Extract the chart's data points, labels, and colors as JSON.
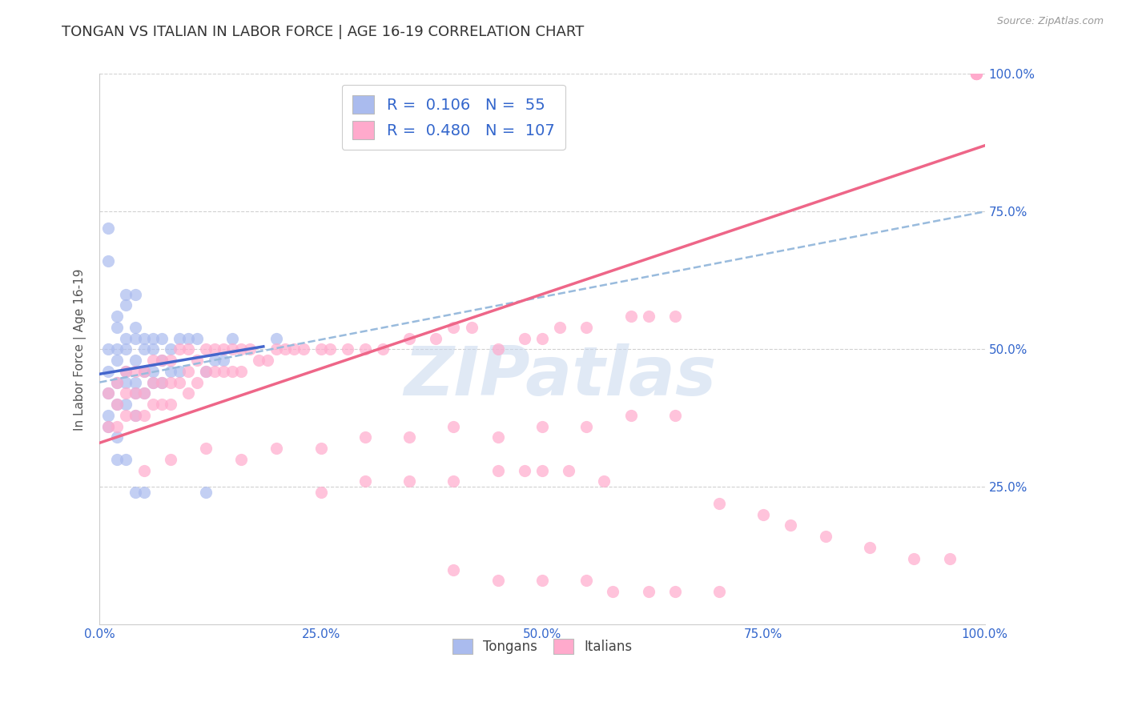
{
  "title": "TONGAN VS ITALIAN IN LABOR FORCE | AGE 16-19 CORRELATION CHART",
  "source": "Source: ZipAtlas.com",
  "ylabel": "In Labor Force | Age 16-19",
  "watermark": "ZIPatlas",
  "xlim": [
    0,
    1.0
  ],
  "ylim": [
    0,
    1.0
  ],
  "xticks": [
    0.0,
    0.25,
    0.5,
    0.75,
    1.0
  ],
  "yticks": [
    0.25,
    0.5,
    0.75,
    1.0
  ],
  "xticklabels": [
    "0.0%",
    "25.0%",
    "50.0%",
    "75.0%",
    "100.0%"
  ],
  "yticklabels_right": [
    "25.0%",
    "50.0%",
    "75.0%",
    "100.0%"
  ],
  "grid_color": "#cccccc",
  "background_color": "#ffffff",
  "tongan_color": "#aabbee",
  "italian_color": "#ffaacc",
  "tongan_line_color": "#4466cc",
  "italian_line_color": "#ee6688",
  "dashed_line_color": "#99bbdd",
  "tick_color": "#3366cc",
  "legend_R_tongan": "0.106",
  "legend_N_tongan": "55",
  "legend_R_italian": "0.480",
  "legend_N_italian": "107",
  "legend_text_color": "#3366cc",
  "title_fontsize": 13,
  "axis_label_fontsize": 11,
  "tick_fontsize": 11,
  "tongan_scatter_x": [
    0.01,
    0.01,
    0.01,
    0.02,
    0.02,
    0.02,
    0.02,
    0.02,
    0.03,
    0.03,
    0.03,
    0.03,
    0.03,
    0.04,
    0.04,
    0.04,
    0.04,
    0.04,
    0.04,
    0.05,
    0.05,
    0.05,
    0.05,
    0.06,
    0.06,
    0.06,
    0.06,
    0.07,
    0.07,
    0.07,
    0.08,
    0.08,
    0.09,
    0.09,
    0.1,
    0.11,
    0.12,
    0.13,
    0.14,
    0.15,
    0.02,
    0.03,
    0.04,
    0.05,
    0.01,
    0.01,
    0.01,
    0.02,
    0.03,
    0.04,
    0.12,
    0.2,
    0.01,
    0.02,
    0.03
  ],
  "tongan_scatter_y": [
    0.5,
    0.46,
    0.42,
    0.54,
    0.5,
    0.48,
    0.44,
    0.4,
    0.52,
    0.5,
    0.46,
    0.44,
    0.4,
    0.54,
    0.52,
    0.48,
    0.44,
    0.42,
    0.38,
    0.52,
    0.5,
    0.46,
    0.42,
    0.52,
    0.5,
    0.46,
    0.44,
    0.52,
    0.48,
    0.44,
    0.5,
    0.46,
    0.52,
    0.46,
    0.52,
    0.52,
    0.46,
    0.48,
    0.48,
    0.52,
    0.3,
    0.3,
    0.24,
    0.24,
    0.66,
    0.72,
    0.36,
    0.34,
    0.6,
    0.6,
    0.24,
    0.52,
    0.38,
    0.56,
    0.58
  ],
  "italian_scatter_x": [
    0.01,
    0.01,
    0.02,
    0.02,
    0.02,
    0.03,
    0.03,
    0.03,
    0.04,
    0.04,
    0.04,
    0.05,
    0.05,
    0.05,
    0.06,
    0.06,
    0.06,
    0.07,
    0.07,
    0.07,
    0.08,
    0.08,
    0.08,
    0.09,
    0.09,
    0.1,
    0.1,
    0.1,
    0.11,
    0.11,
    0.12,
    0.12,
    0.13,
    0.13,
    0.14,
    0.14,
    0.15,
    0.15,
    0.16,
    0.16,
    0.17,
    0.18,
    0.19,
    0.2,
    0.21,
    0.22,
    0.23,
    0.25,
    0.26,
    0.28,
    0.3,
    0.32,
    0.35,
    0.38,
    0.4,
    0.42,
    0.45,
    0.48,
    0.5,
    0.52,
    0.55,
    0.6,
    0.62,
    0.65,
    0.05,
    0.08,
    0.12,
    0.16,
    0.2,
    0.25,
    0.3,
    0.35,
    0.4,
    0.45,
    0.5,
    0.55,
    0.6,
    0.65,
    0.25,
    0.3,
    0.35,
    0.4,
    0.45,
    0.48,
    0.5,
    0.53,
    0.57,
    0.7,
    0.75,
    0.78,
    0.82,
    0.87,
    0.92,
    0.96,
    0.99,
    0.99,
    0.99,
    0.99,
    0.99,
    0.4,
    0.45,
    0.5,
    0.55,
    0.58,
    0.62,
    0.65,
    0.7
  ],
  "italian_scatter_y": [
    0.42,
    0.36,
    0.44,
    0.4,
    0.36,
    0.46,
    0.42,
    0.38,
    0.46,
    0.42,
    0.38,
    0.46,
    0.42,
    0.38,
    0.48,
    0.44,
    0.4,
    0.48,
    0.44,
    0.4,
    0.48,
    0.44,
    0.4,
    0.5,
    0.44,
    0.5,
    0.46,
    0.42,
    0.48,
    0.44,
    0.5,
    0.46,
    0.5,
    0.46,
    0.5,
    0.46,
    0.5,
    0.46,
    0.5,
    0.46,
    0.5,
    0.48,
    0.48,
    0.5,
    0.5,
    0.5,
    0.5,
    0.5,
    0.5,
    0.5,
    0.5,
    0.5,
    0.52,
    0.52,
    0.54,
    0.54,
    0.5,
    0.52,
    0.52,
    0.54,
    0.54,
    0.56,
    0.56,
    0.56,
    0.28,
    0.3,
    0.32,
    0.3,
    0.32,
    0.32,
    0.34,
    0.34,
    0.36,
    0.34,
    0.36,
    0.36,
    0.38,
    0.38,
    0.24,
    0.26,
    0.26,
    0.26,
    0.28,
    0.28,
    0.28,
    0.28,
    0.26,
    0.22,
    0.2,
    0.18,
    0.16,
    0.14,
    0.12,
    0.12,
    1.0,
    1.0,
    1.0,
    1.0,
    1.0,
    0.1,
    0.08,
    0.08,
    0.08,
    0.06,
    0.06,
    0.06,
    0.06
  ],
  "tongan_line_x": [
    0.0,
    0.185
  ],
  "tongan_line_y": [
    0.455,
    0.505
  ],
  "italian_line_x": [
    0.0,
    1.0
  ],
  "italian_line_y": [
    0.33,
    0.87
  ],
  "dashed_line_x": [
    0.0,
    1.0
  ],
  "dashed_line_y": [
    0.44,
    0.75
  ]
}
